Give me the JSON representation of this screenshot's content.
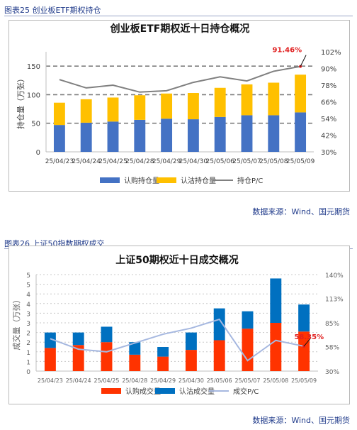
{
  "figure1": {
    "label": "图表25 创业板ETF期权持仓",
    "source": "数据来源：Wind、国元期货"
  },
  "figure2": {
    "label": "图表26 上证50指数期权成交",
    "source": "数据来源：Wind、国元期货"
  },
  "chart_data": [
    {
      "type": "bar",
      "stacked": true,
      "title": "创业板ETF期权近十日持仓概况",
      "ylabel": "持仓量（万张）",
      "categories": [
        "25/04/23",
        "25/04/24",
        "25/04/25",
        "25/04/28",
        "25/04/29",
        "25/04/30",
        "25/05/06",
        "25/05/07",
        "25/05/08",
        "25/05/09"
      ],
      "ylim": [
        0,
        175
      ],
      "yticks": [
        0,
        50,
        100,
        150
      ],
      "y2lim": [
        30,
        102
      ],
      "y2ticks": [
        "30%",
        "42%",
        "54%",
        "66%",
        "78%",
        "90%",
        "102%"
      ],
      "y2tick_values": [
        30,
        42,
        54,
        66,
        78,
        90,
        102
      ],
      "grid": "dashed",
      "legend": "bottom",
      "series": [
        {
          "name": "认购持仓量",
          "color": "#4472c4",
          "values": [
            47,
            51,
            53,
            56,
            58,
            57,
            61,
            64,
            64,
            69
          ]
        },
        {
          "name": "认沽持仓量",
          "color": "#ffc000",
          "values": [
            39,
            41,
            42,
            43,
            44,
            46,
            51,
            54,
            57,
            66
          ]
        }
      ],
      "line": {
        "name": "持仓P/C",
        "color": "#808080",
        "axis": "right",
        "values": [
          82,
          76,
          78,
          73,
          74,
          80,
          84,
          81,
          88,
          91.46
        ]
      },
      "annotation": {
        "text": "91.46%",
        "color": "#e02020",
        "index": 9
      }
    },
    {
      "type": "bar",
      "stacked": true,
      "title": "上证50期权近十日成交概况",
      "ylabel": "成交量（万张）",
      "categories": [
        "25/04/23",
        "25/04/24",
        "25/04/25",
        "25/04/28",
        "25/04/29",
        "25/04/30",
        "25/05/06",
        "25/05/07",
        "25/05/08",
        "25/05/09"
      ],
      "ylim": [
        0,
        5
      ],
      "yticks": [
        0,
        0.5,
        1,
        1.5,
        2,
        2.5,
        3,
        3.5,
        4,
        4.5,
        5
      ],
      "ytick_labels": [
        "0",
        "1",
        "1",
        "2",
        "2",
        "3",
        "3",
        "4",
        "4",
        "5",
        "5"
      ],
      "y2lim": [
        30,
        140
      ],
      "y2ticks": [
        "30%",
        "58%",
        "85%",
        "113%",
        "140%"
      ],
      "y2tick_values": [
        30,
        58,
        85,
        113,
        140
      ],
      "grid": "dotted",
      "legend": "bottom",
      "series": [
        {
          "name": "认购成交量",
          "color": "#ff3300",
          "values": [
            1.2,
            1.35,
            1.5,
            0.85,
            0.75,
            1.1,
            1.6,
            2.2,
            2.5,
            2.05
          ]
        },
        {
          "name": "认沽成交量",
          "color": "#0070c0",
          "values": [
            0.8,
            0.65,
            0.8,
            0.65,
            0.5,
            0.9,
            1.65,
            0.9,
            2.3,
            1.4
          ]
        }
      ],
      "line": {
        "name": "成交P/C",
        "color": "#a6b8e0",
        "axis": "right",
        "values": [
          67,
          55,
          52,
          62,
          72,
          79,
          89,
          42,
          65,
          58.35
        ]
      },
      "annotation": {
        "text": "58.35%",
        "color": "#e02020",
        "index": 9
      }
    }
  ]
}
